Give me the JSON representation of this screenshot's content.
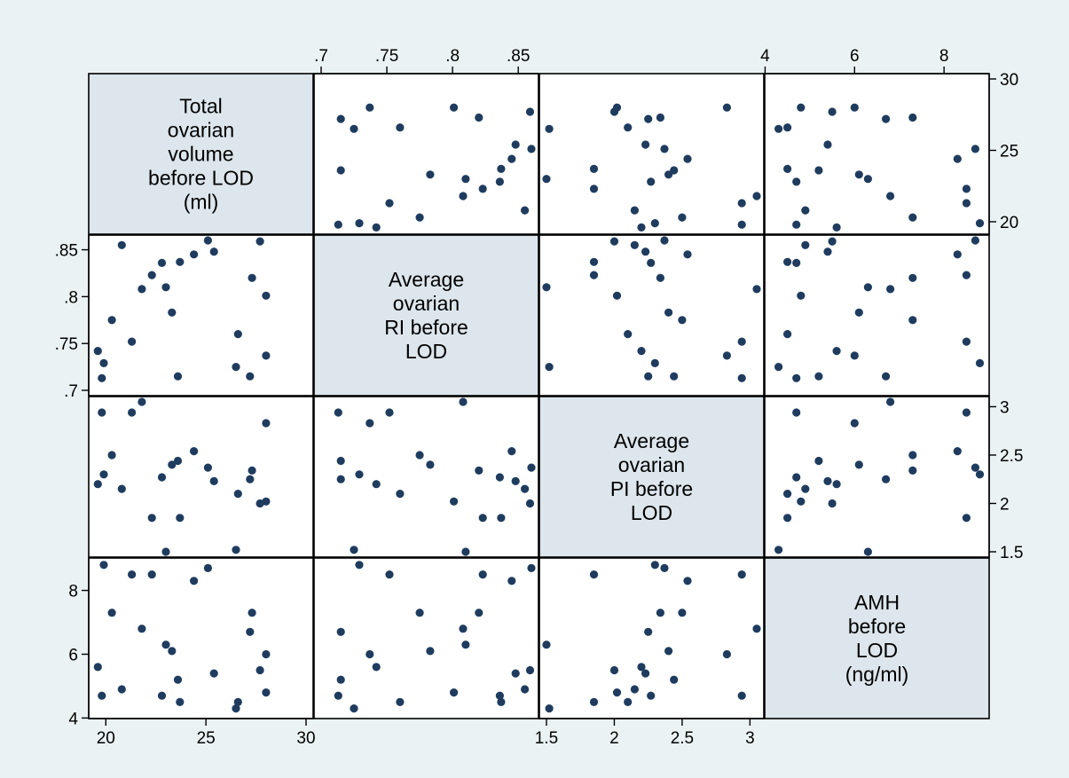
{
  "chart_data": {
    "type": "scatter",
    "kind": "scatter-matrix",
    "colors": {
      "background": "#eaf2f3",
      "diagonal_fill": "#dce6ec",
      "panel_fill": "#ffffff",
      "marker": "#1f3c5e",
      "frame": "#000000"
    },
    "variables": [
      {
        "key": "vol",
        "label_lines": [
          "Total",
          "ovarian",
          "volume",
          "before LOD",
          "(ml)"
        ],
        "range": [
          19.5,
          30
        ],
        "ticks": [
          20,
          25,
          30
        ],
        "tick_labels": [
          "20",
          "25",
          "30"
        ],
        "x_axis": "bottom",
        "y_axis": "right"
      },
      {
        "key": "ri",
        "label_lines": [
          "Average",
          "ovarian",
          "RI before",
          "LOD"
        ],
        "range": [
          0.7,
          0.86
        ],
        "ticks": [
          0.7,
          0.75,
          0.8,
          0.85
        ],
        "tick_labels": [
          ".7",
          ".75",
          ".8",
          ".85"
        ],
        "x_axis": "top",
        "y_axis": "left"
      },
      {
        "key": "pi",
        "label_lines": [
          "Average",
          "ovarian",
          "PI before",
          "LOD"
        ],
        "range": [
          1.5,
          3.05
        ],
        "ticks": [
          1.5,
          2,
          2.5,
          3
        ],
        "tick_labels": [
          "1.5",
          "2",
          "2.5",
          "3"
        ],
        "x_axis": "bottom",
        "y_axis": "right"
      },
      {
        "key": "amh",
        "label_lines": [
          "AMH",
          "before",
          "LOD",
          "(ng/ml)"
        ],
        "range": [
          4.15,
          8.85
        ],
        "ticks": [
          4,
          6,
          8
        ],
        "tick_labels": [
          "4",
          "6",
          "8"
        ],
        "x_axis": "top",
        "y_axis": "left"
      }
    ],
    "points": [
      {
        "vol": 19.8,
        "ri": 0.713,
        "pi": 2.94,
        "amh": 4.7
      },
      {
        "vol": 19.6,
        "ri": 0.742,
        "pi": 2.2,
        "amh": 5.6
      },
      {
        "vol": 19.9,
        "ri": 0.729,
        "pi": 2.3,
        "amh": 8.8
      },
      {
        "vol": 20.3,
        "ri": 0.775,
        "pi": 2.5,
        "amh": 7.3
      },
      {
        "vol": 20.8,
        "ri": 0.855,
        "pi": 2.15,
        "amh": 4.9
      },
      {
        "vol": 21.3,
        "ri": 0.752,
        "pi": 2.94,
        "amh": 8.5
      },
      {
        "vol": 21.8,
        "ri": 0.808,
        "pi": 3.05,
        "amh": 6.8
      },
      {
        "vol": 22.3,
        "ri": 0.823,
        "pi": 1.85,
        "amh": 8.5
      },
      {
        "vol": 22.8,
        "ri": 0.836,
        "pi": 2.27,
        "amh": 4.7
      },
      {
        "vol": 23.0,
        "ri": 0.81,
        "pi": 1.5,
        "amh": 6.3
      },
      {
        "vol": 23.3,
        "ri": 0.783,
        "pi": 2.4,
        "amh": 6.1
      },
      {
        "vol": 23.6,
        "ri": 0.715,
        "pi": 2.44,
        "amh": 5.2
      },
      {
        "vol": 23.7,
        "ri": 0.837,
        "pi": 1.85,
        "amh": 4.5
      },
      {
        "vol": 24.4,
        "ri": 0.845,
        "pi": 2.54,
        "amh": 8.3
      },
      {
        "vol": 25.1,
        "ri": 0.86,
        "pi": 2.37,
        "amh": 8.7
      },
      {
        "vol": 25.4,
        "ri": 0.848,
        "pi": 2.23,
        "amh": 5.4
      },
      {
        "vol": 26.5,
        "ri": 0.725,
        "pi": 1.52,
        "amh": 4.3
      },
      {
        "vol": 26.6,
        "ri": 0.76,
        "pi": 2.1,
        "amh": 4.5
      },
      {
        "vol": 27.2,
        "ri": 0.715,
        "pi": 2.25,
        "amh": 6.7
      },
      {
        "vol": 27.3,
        "ri": 0.82,
        "pi": 2.34,
        "amh": 7.3
      },
      {
        "vol": 27.7,
        "ri": 0.859,
        "pi": 2.0,
        "amh": 5.5
      },
      {
        "vol": 28.0,
        "ri": 0.737,
        "pi": 2.83,
        "amh": 6.0
      },
      {
        "vol": 28.0,
        "ri": 0.801,
        "pi": 2.02,
        "amh": 4.8
      }
    ]
  }
}
